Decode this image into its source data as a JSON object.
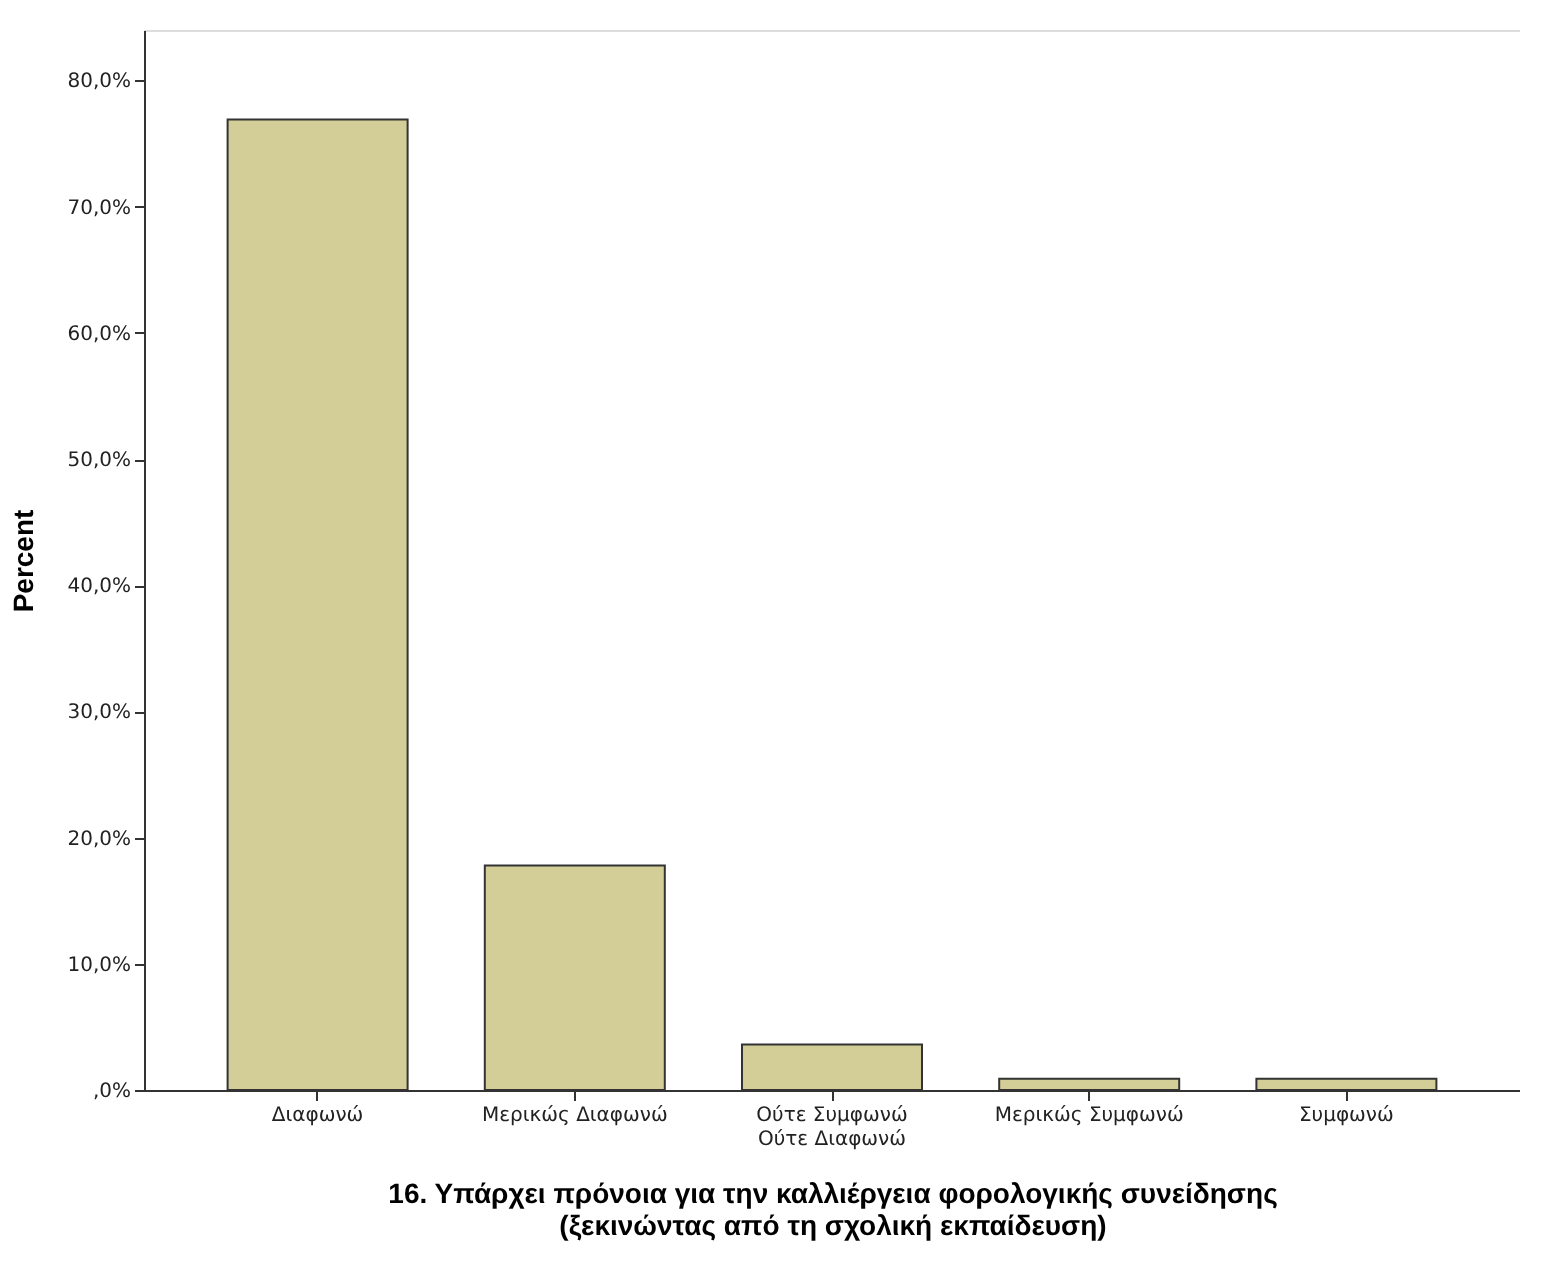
{
  "chart_data": {
    "type": "bar",
    "xlabel": "16. Υπάρχει πρόνοια για την καλλιέργεια φορολογικής συνείδησης\n(ξεκινώντας από τη σχολική εκπαίδευση)",
    "ylabel": "Percent",
    "categories": [
      "Διαφωνώ",
      "Μερικώς Διαφωνώ",
      "Ούτε Συμφωνώ\nΟύτε Διαφωνώ",
      "Μερικώς Συμφωνώ",
      "Συμφωνώ"
    ],
    "values": [
      76.9,
      17.8,
      3.6,
      0.9,
      0.9
    ],
    "color": "#d3ce97",
    "ylim": [
      0,
      84
    ],
    "yticks": [
      {
        "value": 0,
        "label": ",0%"
      },
      {
        "value": 10,
        "label": "10,0%"
      },
      {
        "value": 20,
        "label": "20,0%"
      },
      {
        "value": 30,
        "label": "30,0%"
      },
      {
        "value": 40,
        "label": "40,0%"
      },
      {
        "value": 50,
        "label": "50,0%"
      },
      {
        "value": 60,
        "label": "60,0%"
      },
      {
        "value": 70,
        "label": "70,0%"
      },
      {
        "value": 80,
        "label": "80,0%"
      }
    ],
    "grid": false,
    "legend": false
  }
}
